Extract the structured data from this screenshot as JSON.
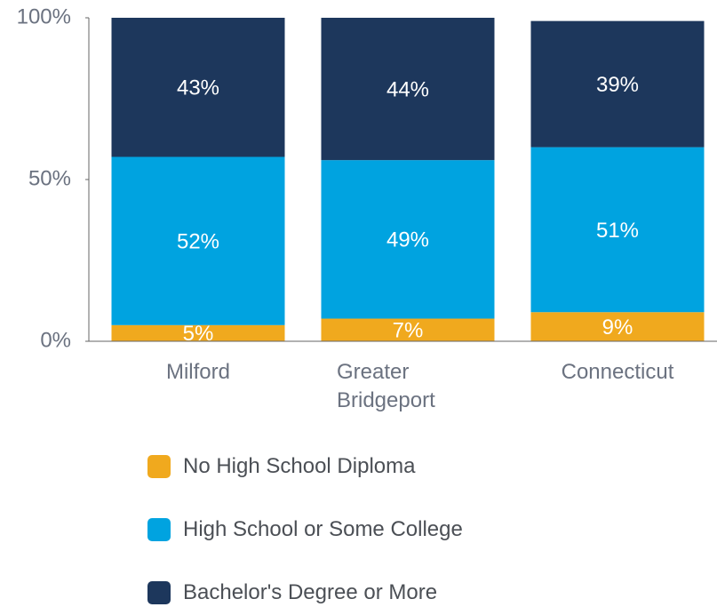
{
  "chart_data": {
    "type": "bar",
    "stacked": true,
    "categories": [
      "Milford",
      "Greater Bridgeport",
      "Connecticut"
    ],
    "series": [
      {
        "name": "No High School Diploma",
        "color": "#f0a91e",
        "values": [
          5,
          7,
          9
        ],
        "value_labels": [
          "5%",
          "7%",
          "9%"
        ]
      },
      {
        "name": "High School or Some College",
        "color": "#00a3e0",
        "values": [
          52,
          49,
          51
        ],
        "value_labels": [
          "52%",
          "49%",
          "51%"
        ]
      },
      {
        "name": "Bachelor's Degree or More",
        "color": "#1d375c",
        "values": [
          43,
          44,
          39
        ],
        "value_labels": [
          "43%",
          "44%",
          "39%"
        ]
      }
    ],
    "ylim": [
      0,
      100
    ],
    "yticks": [
      {
        "value": 0,
        "label": "0%"
      },
      {
        "value": 50,
        "label": "50%"
      },
      {
        "value": 100,
        "label": "100%"
      }
    ],
    "grid": false,
    "legend": "bottom"
  }
}
